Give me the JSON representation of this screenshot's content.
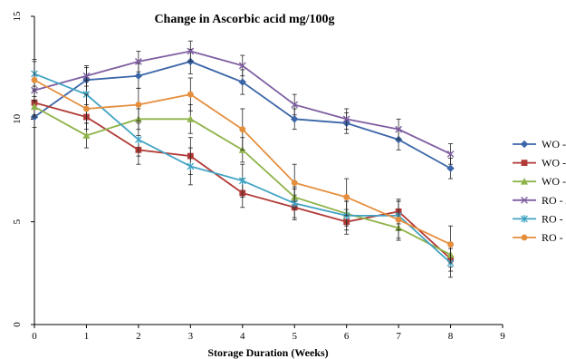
{
  "chart_data": {
    "type": "line",
    "title": "Change in Ascorbic acid mg/100g",
    "xlabel": "Storage Duration (Weeks)",
    "ylabel": "",
    "xlim": [
      0,
      9
    ],
    "ylim": [
      0,
      15
    ],
    "x_ticks": [
      "0",
      "1",
      "2",
      "3",
      "4",
      "5",
      "6",
      "7",
      "8",
      "9"
    ],
    "y_ticks": [
      "0",
      "5",
      "10",
      "15"
    ],
    "x": [
      0,
      1,
      2,
      3,
      4,
      5,
      6,
      7,
      8
    ],
    "legend_position": "right",
    "series": [
      {
        "name": "WO - AT",
        "color": "#3B66A8",
        "marker": "diamond",
        "values": [
          10.1,
          11.9,
          12.1,
          12.8,
          11.8,
          10.0,
          9.8,
          9.0,
          7.6
        ],
        "errors": [
          0.5,
          0.6,
          0.6,
          0.6,
          0.6,
          0.5,
          0.5,
          0.5,
          0.5
        ]
      },
      {
        "name": "WO - RT",
        "color": "#B03A36",
        "marker": "square",
        "values": [
          10.8,
          10.1,
          8.5,
          8.2,
          6.4,
          5.7,
          5.0,
          5.5,
          3.2
        ],
        "errors": [
          0.6,
          0.6,
          0.7,
          0.9,
          0.7,
          0.6,
          0.6,
          0.6,
          0.6
        ]
      },
      {
        "name": "WO - HT",
        "color": "#8FB34A",
        "marker": "triangle",
        "values": [
          10.6,
          9.2,
          10.0,
          10.0,
          8.5,
          6.2,
          5.4,
          4.7,
          3.4
        ],
        "errors": [
          0.5,
          0.6,
          0.5,
          0.7,
          0.6,
          0.5,
          0.6,
          0.6,
          0.6
        ]
      },
      {
        "name": "RO - AT",
        "color": "#7E5EA1",
        "marker": "x",
        "values": [
          11.4,
          12.1,
          12.8,
          13.3,
          12.6,
          10.7,
          10.0,
          9.5,
          8.3
        ],
        "errors": [
          0.5,
          0.5,
          0.5,
          0.5,
          0.5,
          0.5,
          0.5,
          0.5,
          0.5
        ]
      },
      {
        "name": "RO - RT",
        "color": "#41A3C3",
        "marker": "star",
        "values": [
          12.2,
          11.2,
          9.0,
          7.7,
          7.0,
          5.9,
          5.3,
          5.3,
          3.0
        ],
        "errors": [
          0.6,
          0.7,
          0.8,
          0.9,
          0.8,
          0.7,
          0.7,
          0.7,
          0.7
        ]
      },
      {
        "name": "RO - HT",
        "color": "#E58E3C",
        "marker": "circle",
        "values": [
          11.9,
          10.5,
          10.7,
          11.2,
          9.5,
          6.9,
          6.2,
          5.1,
          3.9
        ],
        "errors": [
          1.0,
          0.7,
          0.8,
          0.8,
          1.0,
          0.9,
          0.9,
          0.9,
          0.9
        ]
      }
    ]
  }
}
